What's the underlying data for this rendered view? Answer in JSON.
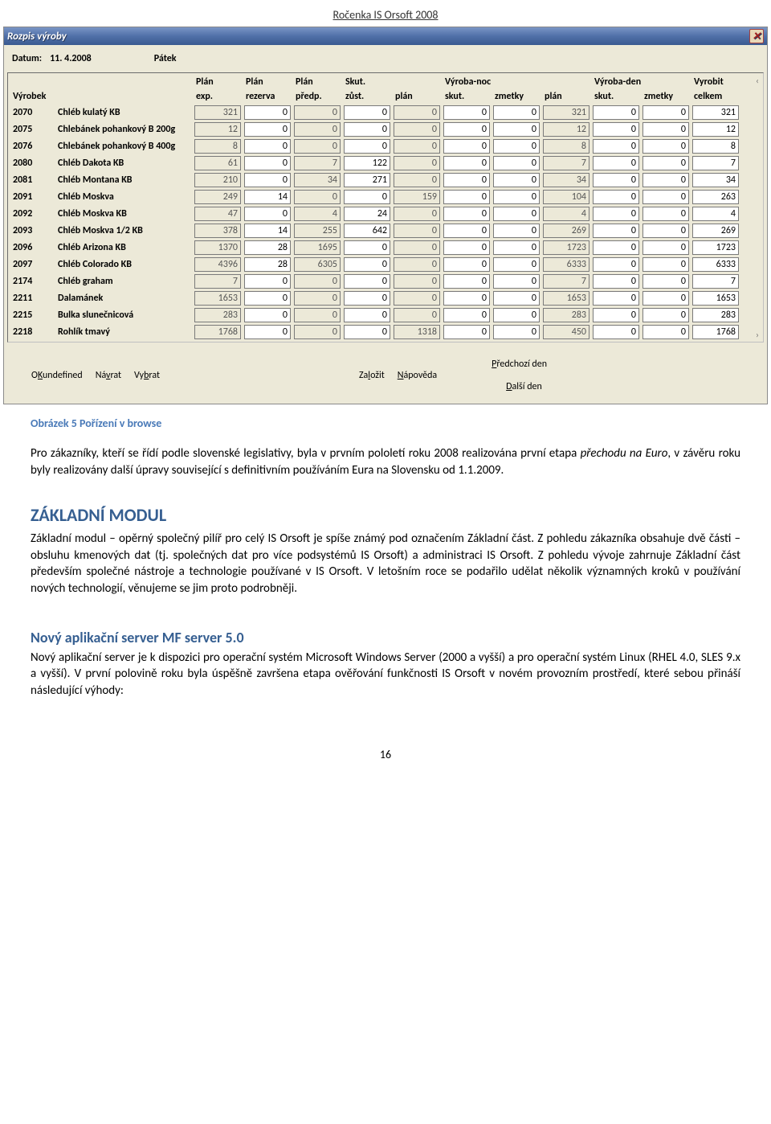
{
  "page_header": "Ročenka IS Orsoft 2008",
  "window": {
    "title": "Rozpis výroby",
    "close_glyph": "✕",
    "datum_label": "Datum:",
    "datum_value": "11.  4.2008",
    "datum_day": "Pátek",
    "header_row1": [
      "",
      "",
      "Plán",
      "Plán",
      "Plán",
      "Skut.",
      "",
      "Výroba-noc",
      "",
      "",
      "Výroba-den",
      "",
      "Vyrobit"
    ],
    "header_row2": [
      "Výrobek",
      "",
      "exp.",
      "rezerva",
      "předp.",
      "zůst.",
      "plán",
      "skut.",
      "zmetky",
      "plán",
      "skut.",
      "zmetky",
      "celkem"
    ],
    "rows": [
      {
        "code": "2070",
        "name": "Chléb kulatý KB",
        "v": [
          "321",
          "0",
          "0",
          "0",
          "0",
          "0",
          "0",
          "321",
          "0",
          "0",
          "321"
        ],
        "ro": [
          1,
          0,
          1,
          0,
          1,
          0,
          0,
          1,
          0,
          0,
          0
        ]
      },
      {
        "code": "2075",
        "name": "Chlebánek pohankový B 200g",
        "v": [
          "12",
          "0",
          "0",
          "0",
          "0",
          "0",
          "0",
          "12",
          "0",
          "0",
          "12"
        ],
        "ro": [
          1,
          0,
          1,
          0,
          1,
          0,
          0,
          1,
          0,
          0,
          0
        ]
      },
      {
        "code": "2076",
        "name": "Chlebánek pohankový B 400g",
        "v": [
          "8",
          "0",
          "0",
          "0",
          "0",
          "0",
          "0",
          "8",
          "0",
          "0",
          "8"
        ],
        "ro": [
          1,
          0,
          1,
          0,
          1,
          0,
          0,
          1,
          0,
          0,
          0
        ]
      },
      {
        "code": "2080",
        "name": "Chléb Dakota KB",
        "v": [
          "61",
          "0",
          "7",
          "122",
          "0",
          "0",
          "0",
          "7",
          "0",
          "0",
          "7"
        ],
        "ro": [
          1,
          0,
          1,
          0,
          1,
          0,
          0,
          1,
          0,
          0,
          0
        ]
      },
      {
        "code": "2081",
        "name": "Chléb Montana KB",
        "v": [
          "210",
          "0",
          "34",
          "271",
          "0",
          "0",
          "0",
          "34",
          "0",
          "0",
          "34"
        ],
        "ro": [
          1,
          0,
          1,
          0,
          1,
          0,
          0,
          1,
          0,
          0,
          0
        ]
      },
      {
        "code": "2091",
        "name": "Chléb Moskva",
        "v": [
          "249",
          "14",
          "0",
          "0",
          "159",
          "0",
          "0",
          "104",
          "0",
          "0",
          "263"
        ],
        "ro": [
          1,
          0,
          1,
          0,
          1,
          0,
          0,
          1,
          0,
          0,
          0
        ]
      },
      {
        "code": "2092",
        "name": "Chléb Moskva KB",
        "v": [
          "47",
          "0",
          "4",
          "24",
          "0",
          "0",
          "0",
          "4",
          "0",
          "0",
          "4"
        ],
        "ro": [
          1,
          0,
          1,
          0,
          1,
          0,
          0,
          1,
          0,
          0,
          0
        ]
      },
      {
        "code": "2093",
        "name": "Chléb Moskva 1/2 KB",
        "v": [
          "378",
          "14",
          "255",
          "642",
          "0",
          "0",
          "0",
          "269",
          "0",
          "0",
          "269"
        ],
        "ro": [
          1,
          0,
          1,
          0,
          1,
          0,
          0,
          1,
          0,
          0,
          0
        ]
      },
      {
        "code": "2096",
        "name": "Chléb Arizona KB",
        "v": [
          "1370",
          "28",
          "1695",
          "0",
          "0",
          "0",
          "0",
          "1723",
          "0",
          "0",
          "1723"
        ],
        "ro": [
          1,
          0,
          1,
          0,
          1,
          0,
          0,
          1,
          0,
          0,
          0
        ]
      },
      {
        "code": "2097",
        "name": "Chléb Colorado KB",
        "v": [
          "4396",
          "28",
          "6305",
          "0",
          "0",
          "0",
          "0",
          "6333",
          "0",
          "0",
          "6333"
        ],
        "ro": [
          1,
          0,
          1,
          0,
          1,
          0,
          0,
          1,
          0,
          0,
          0
        ]
      },
      {
        "code": "2174",
        "name": "Chléb graham",
        "v": [
          "7",
          "0",
          "0",
          "0",
          "0",
          "0",
          "0",
          "7",
          "0",
          "0",
          "7"
        ],
        "ro": [
          1,
          0,
          1,
          0,
          1,
          0,
          0,
          1,
          0,
          0,
          0
        ]
      },
      {
        "code": "2211",
        "name": "Dalamánek",
        "v": [
          "1653",
          "0",
          "0",
          "0",
          "0",
          "0",
          "0",
          "1653",
          "0",
          "0",
          "1653"
        ],
        "ro": [
          1,
          0,
          1,
          0,
          1,
          0,
          0,
          1,
          0,
          0,
          0
        ]
      },
      {
        "code": "2215",
        "name": "Bulka slunečnicová",
        "v": [
          "283",
          "0",
          "0",
          "0",
          "0",
          "0",
          "0",
          "283",
          "0",
          "0",
          "283"
        ],
        "ro": [
          1,
          0,
          1,
          0,
          1,
          0,
          0,
          1,
          0,
          0,
          0
        ]
      },
      {
        "code": "2218",
        "name": "Rohlík tmavý",
        "v": [
          "1768",
          "0",
          "0",
          "0",
          "1318",
          "0",
          "0",
          "450",
          "0",
          "0",
          "1768"
        ],
        "ro": [
          1,
          0,
          1,
          0,
          1,
          0,
          0,
          1,
          0,
          0,
          0
        ]
      }
    ],
    "buttons": {
      "ok": [
        "O",
        "K"
      ],
      "navrat": [
        "Ná",
        "v",
        "rat"
      ],
      "vybrat": [
        "Vy",
        "b",
        "rat"
      ],
      "zalozit": [
        "Za",
        "l",
        "ožit"
      ],
      "napoveda": [
        "",
        "N",
        "ápověda"
      ],
      "predchozi": [
        "",
        "P",
        "ředchozí den"
      ],
      "dalsi": [
        "",
        "D",
        "alší den"
      ]
    }
  },
  "body": {
    "caption": "Obrázek 5 Pořízení v browse",
    "p1a": "Pro zákazníky, kteří se řídí podle slovenské legislativy, byla v prvním pololetí roku 2008 realizována první etapa ",
    "p1_em": "pře­chodu na Euro",
    "p1b": ", v závěru roku byly realizovány další úpravy související s definitivním používáním Eura na Slovensku od 1.1.2009.",
    "h2": "ZÁKLADNÍ MODUL",
    "p2": "Základní modul – opěrný společný pilíř pro celý IS Orsoft je spíše známý pod označením Základní část. Z pohledu zá­kazníka obsahuje dvě části – obsluhu kmenových dat (tj. společných dat pro více podsystémů IS Orsoft) a administra­ci IS Orsoft. Z pohledu vývoje zahrnuje Základní část především společné nástroje a technologie používané v IS Or­soft. V letošním roce se podařilo udělat několik významných kroků v používání nových technologií, věnujeme se jim proto podrobněji.",
    "h3": "Nový aplikační server MF server 5.0",
    "p3": "Nový aplikační server je k dispozici pro operační systém Microsoft Windows Server (2000 a vyšší) a pro operační sys­tém Linux (RHEL 4.0, SLES 9.x a vyšší). V první polovině roku byla úspěšně završena etapa ověřování funkčnosti IS Orsoft  v novém provozním prostředí, které sebou přináší následující výhody:"
  },
  "page_num": "16"
}
